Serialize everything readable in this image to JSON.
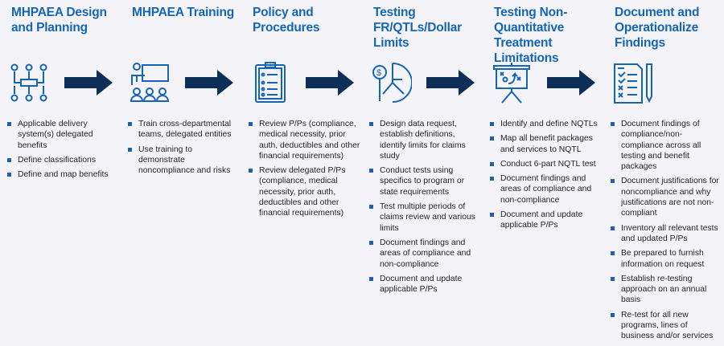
{
  "colors": {
    "title": "#1565b7",
    "arrow": "#0d2f57",
    "icon": "#1565b7",
    "bullet": "#1f5fae"
  },
  "steps": [
    {
      "title": "MHPAEA Design and Planning",
      "icon": "workflow-icon",
      "bullets": [
        "Applicable delivery system(s) delegated benefits",
        "Define classifications",
        "Define and map benefits"
      ]
    },
    {
      "title": "MHPAEA Training",
      "icon": "presentation-training-icon",
      "bullets": [
        "Train cross-departmental teams, delegated entities",
        "Use training to demonstrate noncompliance and risks"
      ]
    },
    {
      "title": "Policy and Procedures",
      "icon": "clipboard-checklist-icon",
      "bullets": [
        "Review P/Ps (compliance, medical necessity, prior auth, deductibles and other financial requirements)",
        "Review delegated P/Ps (compliance, medical necessity, prior auth, deductibles and other financial requirements)"
      ]
    },
    {
      "title": "Testing FR/QTLs/Dollar Limits",
      "icon": "dollar-analysis-icon",
      "bullets": [
        "Design data request, establish definitions, identify limits for claims study",
        "Conduct tests using specifics to program or state requirements",
        "Test multiple periods of claims review and various limits",
        "Document findings and areas of compliance and non-compliance",
        "Document and update applicable P/Ps"
      ]
    },
    {
      "title": "Testing Non-Quantitative Treatment Limitations",
      "icon": "strategy-board-icon",
      "bullets": [
        "Identify and define NQTLs",
        "Map all benefit packages and services to NQTL",
        "Conduct 6-part NQTL test",
        "Document findings and areas of compliance and non-compliance",
        "Document and update applicable P/Ps"
      ]
    },
    {
      "title": "Document and Operationalize Findings",
      "icon": "document-checklist-icon",
      "bullets": [
        "Document findings of compliance/non-compliance across all testing and benefit packages",
        "Document justifications for noncompliance and why justifications are not non-compliant",
        "Inventory all relevant tests and updated P/Ps",
        "Be prepared to furnish information on request",
        "Establish re-testing approach on an annual basis",
        "Re-test for all new programs, lines of business and/or services"
      ]
    }
  ]
}
